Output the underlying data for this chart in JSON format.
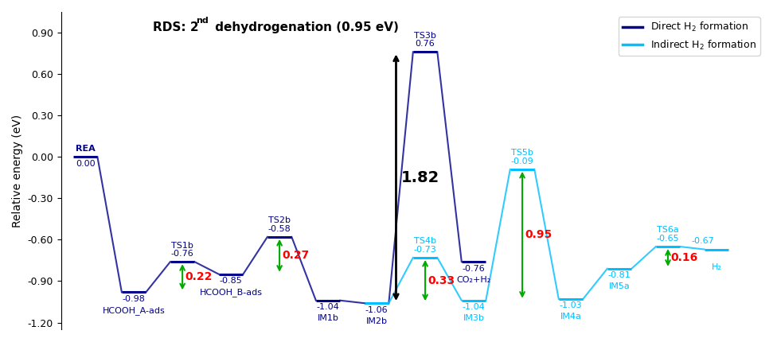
{
  "ylabel": "Relative energy (eV)",
  "ylim": [
    -1.25,
    1.05
  ],
  "yticks": [
    -1.2,
    -0.9,
    -0.6,
    -0.3,
    0.0,
    0.3,
    0.6,
    0.9
  ],
  "dark_blue": "#00008B",
  "cyan": "#00BFFF",
  "red": "#FF0000",
  "green": "#00AA00",
  "black": "#000000",
  "d_xc": [
    0.5,
    2.5,
    4.5,
    6.5,
    8.5,
    10.5,
    12.5,
    14.5,
    16.5
  ],
  "d_y": [
    0.0,
    -0.98,
    -0.76,
    -0.85,
    -0.58,
    -1.04,
    -1.06,
    0.76,
    -0.76
  ],
  "d_names": [
    "REA",
    "HCOOH_A-ads",
    "TS1b",
    "HCOOH_B-ads",
    "TS2b",
    "IM1b",
    "IM2b",
    "TS3b",
    "CO₂+H₂"
  ],
  "d_vals": [
    "0.00",
    "-0.98",
    "-0.76",
    "-0.85",
    "-0.58",
    "-1.04",
    "-1.06",
    "0.76",
    "-0.76"
  ],
  "i_xc": [
    12.5,
    14.5,
    16.5,
    18.5,
    20.5,
    22.5,
    24.5,
    26.5
  ],
  "i_y": [
    -1.06,
    -0.73,
    -1.04,
    -0.09,
    -1.03,
    -0.81,
    -0.65,
    -0.67
  ],
  "i_names": [
    "",
    "TS4b",
    "IM3b",
    "TS5b",
    "IM4a",
    "IM5a",
    "TS6a",
    "H₂"
  ],
  "i_vals": [
    "",
    "-0.73",
    "-1.04",
    "-0.09",
    "-1.03",
    "-0.81",
    "-0.65",
    "-0.67"
  ]
}
